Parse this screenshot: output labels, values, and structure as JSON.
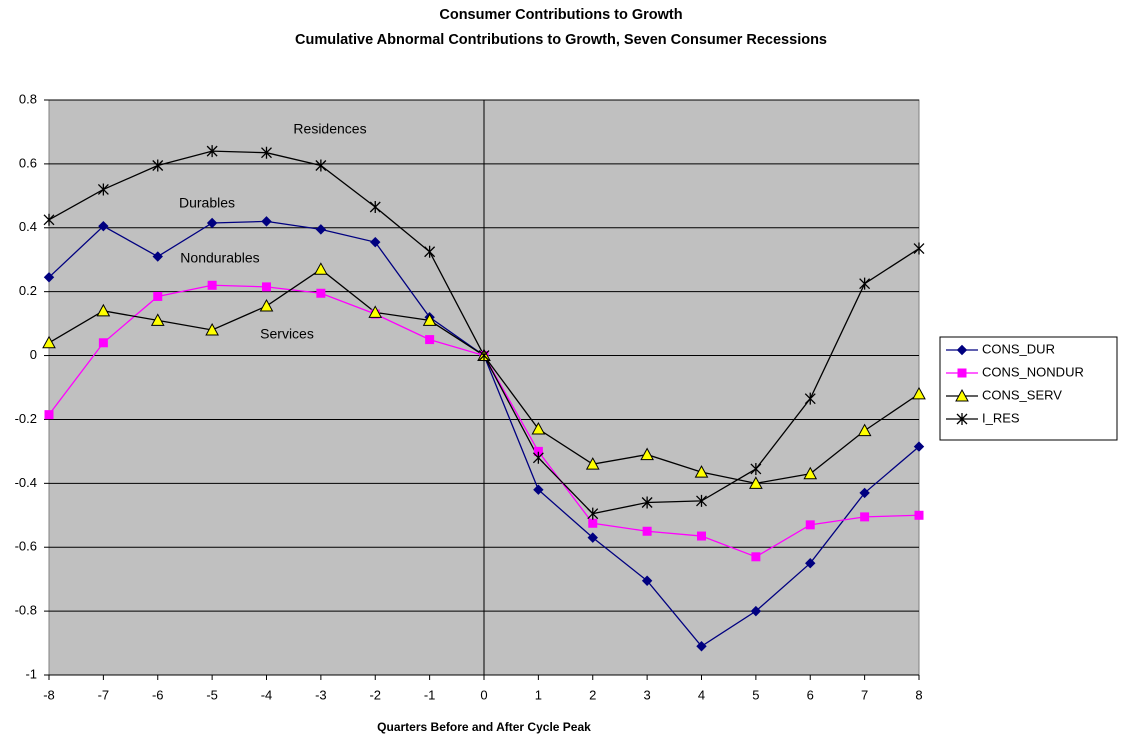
{
  "chart_data": {
    "type": "line",
    "title": "Consumer Contributions to Growth",
    "subtitle": "Cumulative Abnormal Contributions to Growth, Seven Consumer Recessions",
    "x_label": "Quarters Before and After Cycle Peak",
    "x": [
      -8,
      -7,
      -6,
      -5,
      -4,
      -3,
      -2,
      -1,
      0,
      1,
      2,
      3,
      4,
      5,
      6,
      7,
      8
    ],
    "xlim": [
      -8,
      8
    ],
    "xticks": [
      -8,
      -7,
      -6,
      -5,
      -4,
      -3,
      -2,
      -1,
      0,
      1,
      2,
      3,
      4,
      5,
      6,
      7,
      8
    ],
    "ylim": [
      -1,
      0.8
    ],
    "yticks": [
      0.8,
      0.6,
      0.4,
      0.2,
      0,
      -0.2,
      -0.4,
      -0.6,
      -0.8,
      -1
    ],
    "grid": true,
    "legend": "right",
    "series": [
      {
        "name": "CONS_DUR",
        "color": "#000080",
        "marker": "diamond",
        "marker_fill": "#000080",
        "values": [
          0.245,
          0.405,
          0.31,
          0.415,
          0.42,
          0.395,
          0.355,
          0.12,
          0,
          -0.42,
          -0.57,
          -0.705,
          -0.91,
          -0.8,
          -0.65,
          -0.43,
          -0.285
        ]
      },
      {
        "name": "CONS_NONDUR",
        "color": "#ff00ff",
        "marker": "square",
        "marker_fill": "#ff00ff",
        "values": [
          -0.185,
          0.04,
          0.185,
          0.22,
          0.215,
          0.195,
          0.13,
          0.05,
          0,
          -0.3,
          -0.525,
          -0.55,
          -0.565,
          -0.63,
          -0.53,
          -0.505,
          -0.5
        ]
      },
      {
        "name": "CONS_SERV",
        "color": "#000000",
        "marker": "triangle",
        "marker_fill": "#ffff00",
        "values": [
          0.04,
          0.14,
          0.11,
          0.08,
          0.155,
          0.27,
          0.135,
          0.11,
          0,
          -0.23,
          -0.34,
          -0.31,
          -0.365,
          -0.4,
          -0.37,
          -0.235,
          -0.12
        ]
      },
      {
        "name": "I_RES",
        "color": "#000000",
        "marker": "star",
        "marker_fill": "none",
        "values": [
          0.425,
          0.52,
          0.595,
          0.64,
          0.635,
          0.595,
          0.465,
          0.325,
          0,
          -0.32,
          -0.495,
          -0.46,
          -0.455,
          -0.355,
          -0.135,
          0.225,
          0.335
        ]
      }
    ],
    "annotations": [
      "Residences",
      "Durables",
      "Nondurables",
      "Services"
    ]
  }
}
